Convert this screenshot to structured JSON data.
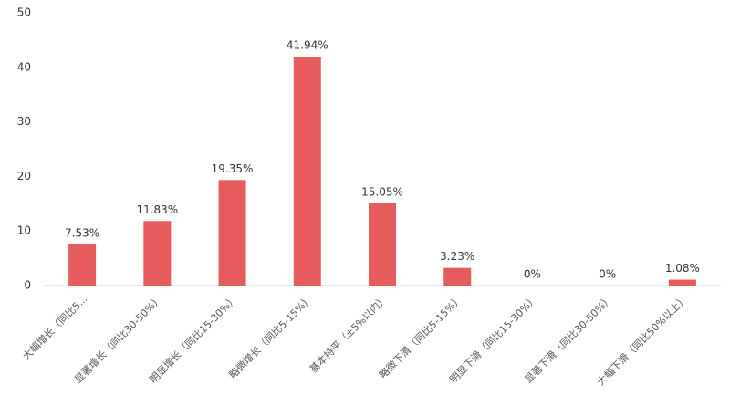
{
  "chart_data": {
    "type": "bar",
    "categories": [
      "大幅增长（同比5...",
      "显著增长（同比30-50%）",
      "明显增长（同比15-30%）",
      "略微增长（同比5-15%）",
      "基本持平（±5%以内）",
      "略微下滑（同比5-15%）",
      "明显下滑（同比15-30%）",
      "显著下滑（同比30-50%）",
      "大幅下滑（同比50%以上）"
    ],
    "values": [
      7.53,
      11.83,
      19.35,
      41.94,
      15.05,
      3.23,
      0,
      0,
      1.08
    ],
    "value_labels": [
      "7.53%",
      "11.83%",
      "19.35%",
      "41.94%",
      "15.05%",
      "3.23%",
      "0%",
      "0%",
      "1.08%"
    ],
    "color": "#e65b5c",
    "ylim": [
      0,
      50
    ],
    "yticks": [
      0,
      10,
      20,
      30,
      40,
      50
    ],
    "grid": false
  }
}
